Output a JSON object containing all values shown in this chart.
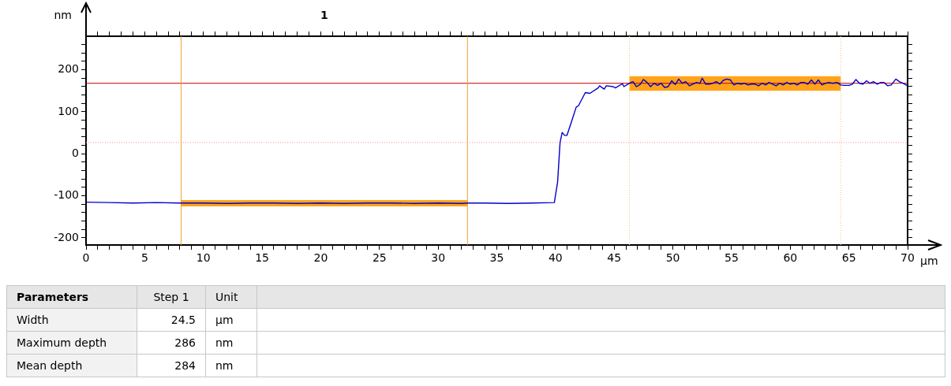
{
  "chart_data": {
    "type": "line",
    "xlabel": "µm",
    "ylabel": "nm",
    "xlim": [
      0,
      70
    ],
    "ylim": [
      -217,
      280
    ],
    "xticks": [
      0,
      {
        "value": 1,
        "label": null
      },
      {
        "value": 2,
        "label": null
      },
      {
        "value": 3,
        "label": null
      },
      {
        "value": 4,
        "label": null
      },
      5,
      {
        "value": 6,
        "label": null
      },
      {
        "value": 7,
        "label": null
      },
      {
        "value": 8,
        "label": null
      },
      {
        "value": 9,
        "label": null
      },
      10,
      {
        "value": 11,
        "label": null
      },
      {
        "value": 12,
        "label": null
      },
      {
        "value": 13,
        "label": null
      },
      {
        "value": 14,
        "label": null
      },
      15,
      {
        "value": 16,
        "label": null
      },
      {
        "value": 17,
        "label": null
      },
      {
        "value": 18,
        "label": null
      },
      {
        "value": 19,
        "label": null
      },
      20,
      {
        "value": 21,
        "label": null
      },
      {
        "value": 22,
        "label": null
      },
      {
        "value": 23,
        "label": null
      },
      {
        "value": 24,
        "label": null
      },
      25,
      {
        "value": 26,
        "label": null
      },
      {
        "value": 27,
        "label": null
      },
      {
        "value": 28,
        "label": null
      },
      {
        "value": 29,
        "label": null
      },
      30,
      {
        "value": 31,
        "label": null
      },
      {
        "value": 32,
        "label": null
      },
      {
        "value": 33,
        "label": null
      },
      {
        "value": 34,
        "label": null
      },
      35,
      {
        "value": 36,
        "label": null
      },
      {
        "value": 37,
        "label": null
      },
      {
        "value": 38,
        "label": null
      },
      {
        "value": 39,
        "label": null
      },
      40,
      {
        "value": 41,
        "label": null
      },
      {
        "value": 42,
        "label": null
      },
      {
        "value": 43,
        "label": null
      },
      {
        "value": 44,
        "label": null
      },
      45,
      {
        "value": 46,
        "label": null
      },
      {
        "value": 47,
        "label": null
      },
      {
        "value": 48,
        "label": null
      },
      {
        "value": 49,
        "label": null
      },
      50,
      {
        "value": 51,
        "label": null
      },
      {
        "value": 52,
        "label": null
      },
      {
        "value": 53,
        "label": null
      },
      {
        "value": 54,
        "label": null
      },
      55,
      {
        "value": 56,
        "label": null
      },
      {
        "value": 57,
        "label": null
      },
      {
        "value": 58,
        "label": null
      },
      {
        "value": 59,
        "label": null
      },
      60,
      {
        "value": 61,
        "label": null
      },
      {
        "value": 62,
        "label": null
      },
      {
        "value": 63,
        "label": null
      },
      {
        "value": 64,
        "label": null
      },
      65,
      {
        "value": 66,
        "label": null
      },
      {
        "value": 67,
        "label": null
      },
      {
        "value": 68,
        "label": null
      },
      {
        "value": 69,
        "label": null
      },
      70
    ],
    "yticks": [
      -200,
      {
        "value": -180,
        "label": null
      },
      {
        "value": -160,
        "label": null
      },
      {
        "value": -140,
        "label": null
      },
      {
        "value": -120,
        "label": null
      },
      -100,
      {
        "value": -80,
        "label": null
      },
      {
        "value": -60,
        "label": null
      },
      {
        "value": -40,
        "label": null
      },
      {
        "value": -20,
        "label": null
      },
      0,
      {
        "value": 20,
        "label": null
      },
      {
        "value": 40,
        "label": null
      },
      {
        "value": 60,
        "label": null
      },
      {
        "value": 80,
        "label": null
      },
      100,
      {
        "value": 120,
        "label": null
      },
      {
        "value": 140,
        "label": null
      },
      {
        "value": 160,
        "label": null
      },
      {
        "value": 180,
        "label": null
      },
      200,
      {
        "value": 220,
        "label": null
      },
      {
        "value": 240,
        "label": null
      },
      {
        "value": 260,
        "label": null
      }
    ],
    "grid": false,
    "legend": false,
    "marker": "none",
    "series": [
      {
        "type": "bar",
        "color": "#ffa31a",
        "x": [
          20.3,
          55.3
        ],
        "base": [
          -125,
          150
        ],
        "values": [
          15,
          35
        ]
      },
      {
        "color": "#0000cc",
        "line_style": "solid",
        "x": [
          0,
          2,
          4,
          6,
          8,
          10,
          12,
          14,
          16,
          18,
          20,
          22,
          24,
          26,
          28,
          30,
          32,
          32.5,
          34,
          36,
          38,
          39.9,
          40.18,
          40.39,
          40.57,
          40.78,
          40.98,
          41.37,
          41.76,
          41.97,
          42.54,
          42.93,
          43.63,
          43.76,
          44.15,
          44.33,
          44.92,
          45.1,
          45.7,
          45.83,
          46.3,
          46.6,
          46.9,
          47.2,
          47.5,
          47.8,
          48.1,
          48.4,
          48.7,
          49,
          49.3,
          49.6,
          49.9,
          50.2,
          50.5,
          50.8,
          51.1,
          51.4,
          51.7,
          52,
          52.3,
          52.5,
          52.8,
          53.1,
          53.4,
          53.7,
          54,
          54.3,
          54.6,
          54.9,
          55.2,
          55.5,
          55.8,
          56.1,
          56.4,
          56.7,
          57,
          57.3,
          57.6,
          57.9,
          58.2,
          58.5,
          58.8,
          59.1,
          59.4,
          59.7,
          60,
          60.3,
          60.6,
          60.9,
          61.2,
          61.5,
          61.8,
          62.1,
          62.4,
          62.7,
          63,
          63.3,
          63.6,
          64,
          64.3,
          64.6,
          65,
          65.3,
          65.6,
          65.9,
          66.2,
          66.5,
          66.8,
          67.1,
          67.4,
          67.7,
          68,
          68.3,
          68.6,
          69,
          69.3,
          69.6,
          70
        ],
        "values": [
          -115,
          -116,
          -117,
          -116,
          -117,
          -117,
          -118,
          -117,
          -117,
          -118,
          -117,
          -118,
          -117,
          -117,
          -118,
          -117,
          -118,
          -117,
          -117,
          -118,
          -117,
          -116,
          -67,
          27,
          51,
          44,
          44,
          77,
          111,
          115,
          146,
          144,
          157,
          162,
          154,
          162,
          160,
          157,
          167,
          160,
          168,
          172,
          160,
          165,
          177,
          170,
          160,
          168,
          163,
          168,
          158,
          160,
          174,
          165,
          178,
          168,
          172,
          162,
          166,
          170,
          168,
          180,
          166,
          166,
          168,
          172,
          166,
          175,
          178,
          176,
          164,
          168,
          166,
          168,
          164,
          166,
          166,
          162,
          168,
          164,
          170,
          166,
          162,
          168,
          164,
          170,
          166,
          168,
          164,
          170,
          170,
          166,
          176,
          166,
          176,
          164,
          168,
          170,
          168,
          170,
          164,
          163,
          163,
          166,
          177,
          168,
          166,
          174,
          168,
          172,
          166,
          170,
          170,
          162,
          164,
          178,
          172,
          168,
          162
        ]
      }
    ],
    "ref_lines": [
      {
        "axis": "y",
        "value": 168,
        "color": "#c00000",
        "line_style": "solid"
      },
      {
        "axis": "y",
        "value": 27,
        "color": "#ff9090",
        "line_style": "dotted"
      },
      {
        "axis": "x",
        "value": 8.1,
        "color": "#f0a030",
        "line_style": "solid"
      },
      {
        "axis": "x",
        "value": 32.5,
        "color": "#f0a030",
        "line_style": "solid"
      },
      {
        "axis": "x",
        "value": 46.3,
        "color": "#f5c080",
        "line_style": "dotted"
      },
      {
        "axis": "x",
        "value": 64.3,
        "color": "#f5c080",
        "line_style": "dotted"
      }
    ],
    "annotations": [
      "1",
      "Parameters",
      "Step 1",
      "Unit",
      "Width",
      "24.5",
      "µm",
      "Maximum depth",
      "286",
      "nm",
      "Mean depth",
      "284",
      "nm"
    ]
  }
}
